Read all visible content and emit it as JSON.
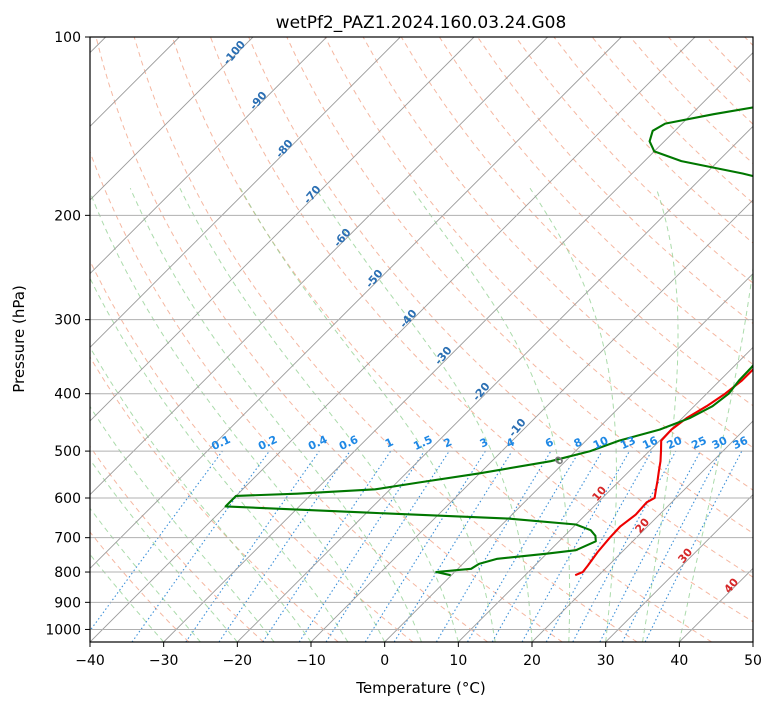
{
  "chart_data": {
    "type": "line",
    "title": "wetPf2_PAZ1.2024.160.03.24.G08",
    "xlabel": "Temperature (°C)",
    "ylabel": "Pressure (hPa)",
    "xlim": [
      -40,
      50
    ],
    "ylim": [
      1050,
      100
    ],
    "y_scale": "log",
    "skew": "skew-T log-p diagram",
    "grid": true,
    "x_ticks": [
      "−40",
      "−30",
      "−20",
      "−10",
      "0",
      "10",
      "20",
      "30",
      "40",
      "50"
    ],
    "y_ticks": [
      "100",
      "200",
      "300",
      "400",
      "500",
      "600",
      "700",
      "800",
      "900",
      "1000"
    ],
    "mixing_ratio_labels": [
      "0.1",
      "0.2",
      "0.4",
      "0.6",
      "1",
      "1.5",
      "2",
      "3",
      "4",
      "6",
      "8",
      "10",
      "13",
      "16",
      "20",
      "25",
      "30",
      "36"
    ],
    "dry_adiabat_labels": [
      "-100",
      "-90",
      "-80",
      "-70",
      "-60",
      "-50",
      "-40",
      "-30",
      "-20",
      "-10",
      "0",
      "10",
      "20",
      "30",
      "40"
    ],
    "series": [
      {
        "color": "#ee0000",
        "points": [
          [
            16.8,
            810
          ],
          [
            17.4,
            800
          ],
          [
            17.2,
            780
          ],
          [
            16.7,
            740
          ],
          [
            16.4,
            700
          ],
          [
            16.3,
            670
          ],
          [
            16.8,
            640
          ],
          [
            16.6,
            610
          ],
          [
            17.1,
            600
          ],
          [
            16.1,
            580
          ],
          [
            15.1,
            560
          ],
          [
            14.0,
            540
          ],
          [
            12.9,
            520
          ],
          [
            11.6,
            500
          ],
          [
            10.2,
            480
          ],
          [
            10.1,
            460
          ],
          [
            10.6,
            440
          ],
          [
            11.7,
            420
          ],
          [
            12.5,
            400
          ],
          [
            13.0,
            380
          ],
          [
            13.0,
            360
          ],
          [
            12.4,
            340
          ],
          [
            11.7,
            320
          ],
          [
            10.3,
            295
          ],
          [
            8.0,
            270
          ],
          [
            5.5,
            240
          ],
          [
            3.0,
            210
          ],
          [
            1.9,
            198
          ],
          [
            2.3,
            192
          ],
          [
            3.8,
            186
          ],
          [
            6.0,
            180
          ],
          [
            9.0,
            172
          ],
          [
            11.0,
            164
          ],
          [
            11.9,
            156
          ],
          [
            11.9,
            150
          ],
          [
            12.3,
            144
          ],
          [
            13.4,
            138
          ],
          [
            14.6,
            133
          ],
          [
            15.7,
            127
          ],
          [
            16.8,
            121
          ],
          [
            17.9,
            115
          ],
          [
            19.0,
            110
          ],
          [
            20.5,
            105
          ],
          [
            21.8,
            100
          ]
        ]
      },
      {
        "color": "#007700",
        "points": [
          [
            -0.1,
            810
          ],
          [
            -2.5,
            800
          ],
          [
            1.8,
            790
          ],
          [
            2.2,
            775
          ],
          [
            4.0,
            760
          ],
          [
            10.0,
            745
          ],
          [
            13.5,
            735
          ],
          [
            15.0,
            710
          ],
          [
            14.2,
            695
          ],
          [
            12.8,
            680
          ],
          [
            10.0,
            665
          ],
          [
            0.0,
            650
          ],
          [
            -20.0,
            635
          ],
          [
            -40.0,
            620
          ],
          [
            -40.0,
            595
          ],
          [
            -32.0,
            590
          ],
          [
            -22.0,
            580
          ],
          [
            -17.0,
            565
          ],
          [
            -10.0,
            545
          ],
          [
            -2.0,
            520
          ],
          [
            2.0,
            500
          ],
          [
            4.5,
            480
          ],
          [
            8.5,
            460
          ],
          [
            11.0,
            440
          ],
          [
            12.5,
            420
          ],
          [
            13.0,
            400
          ],
          [
            12.6,
            380
          ],
          [
            12.5,
            360
          ],
          [
            12.0,
            340
          ],
          [
            11.0,
            320
          ],
          [
            9.8,
            300
          ],
          [
            8.5,
            280
          ],
          [
            6.0,
            255
          ],
          [
            3.6,
            230
          ],
          [
            1.9,
            210
          ],
          [
            1.5,
            200
          ],
          [
            1.4,
            190
          ],
          [
            -5.0,
            180
          ],
          [
            -15.0,
            170
          ],
          [
            -25.0,
            162
          ],
          [
            -30.0,
            156
          ],
          [
            -32.0,
            150
          ],
          [
            -33.0,
            144
          ],
          [
            -32.3,
            140
          ],
          [
            -27.0,
            135
          ],
          [
            -22.0,
            131
          ],
          [
            -17.8,
            127
          ],
          [
            -17.0,
            123
          ],
          [
            -16.6,
            118
          ],
          [
            -15.9,
            111
          ],
          [
            -14.2,
            104
          ],
          [
            -13.5,
            100
          ]
        ]
      }
    ]
  }
}
